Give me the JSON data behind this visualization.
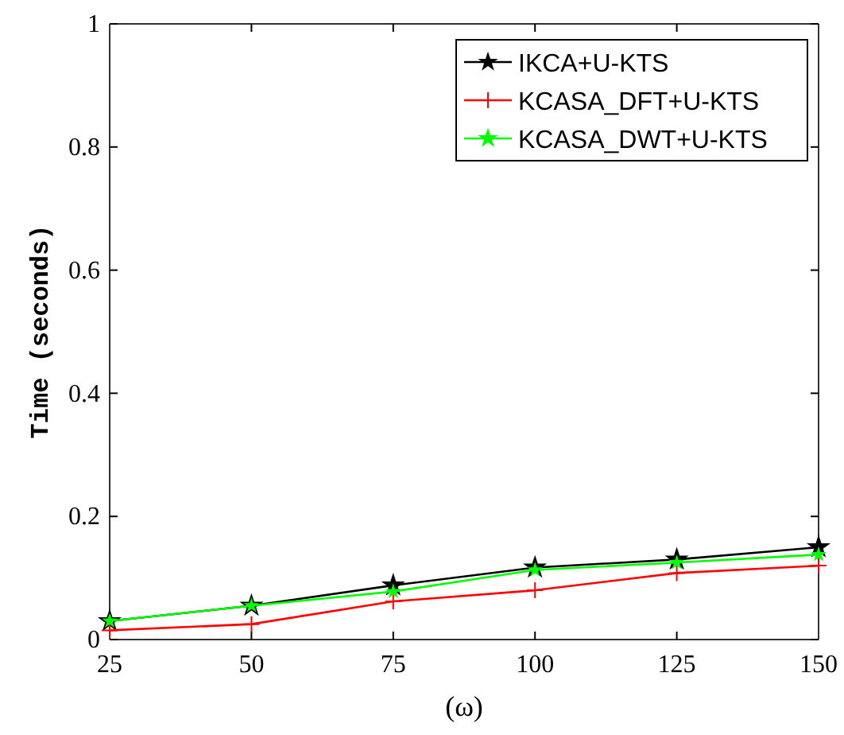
{
  "chart_data": {
    "type": "line",
    "xlabel": "(ω)",
    "ylabel": "Time (seconds)",
    "x": [
      25,
      50,
      75,
      100,
      125,
      150
    ],
    "xlim": [
      25,
      150
    ],
    "xticks": [
      25,
      50,
      75,
      100,
      125,
      150
    ],
    "ylim": [
      0,
      1
    ],
    "yticks": [
      0,
      0.2,
      0.4,
      0.6,
      0.8,
      1
    ],
    "grid": false,
    "legend": "top right",
    "series": [
      {
        "name": "IKCA+U-KTS",
        "color": "#000000",
        "marker": "star",
        "values": [
          0.03,
          0.055,
          0.088,
          0.117,
          0.13,
          0.15
        ]
      },
      {
        "name": "KCASA_DFT+U-KTS",
        "color": "#ff0000",
        "marker": "cross",
        "values": [
          0.015,
          0.025,
          0.062,
          0.08,
          0.108,
          0.12
        ]
      },
      {
        "name": "KCASA_DWT+U-KTS",
        "color": "#00ff00",
        "marker": "star",
        "values": [
          0.03,
          0.055,
          0.078,
          0.113,
          0.125,
          0.138
        ]
      }
    ]
  }
}
